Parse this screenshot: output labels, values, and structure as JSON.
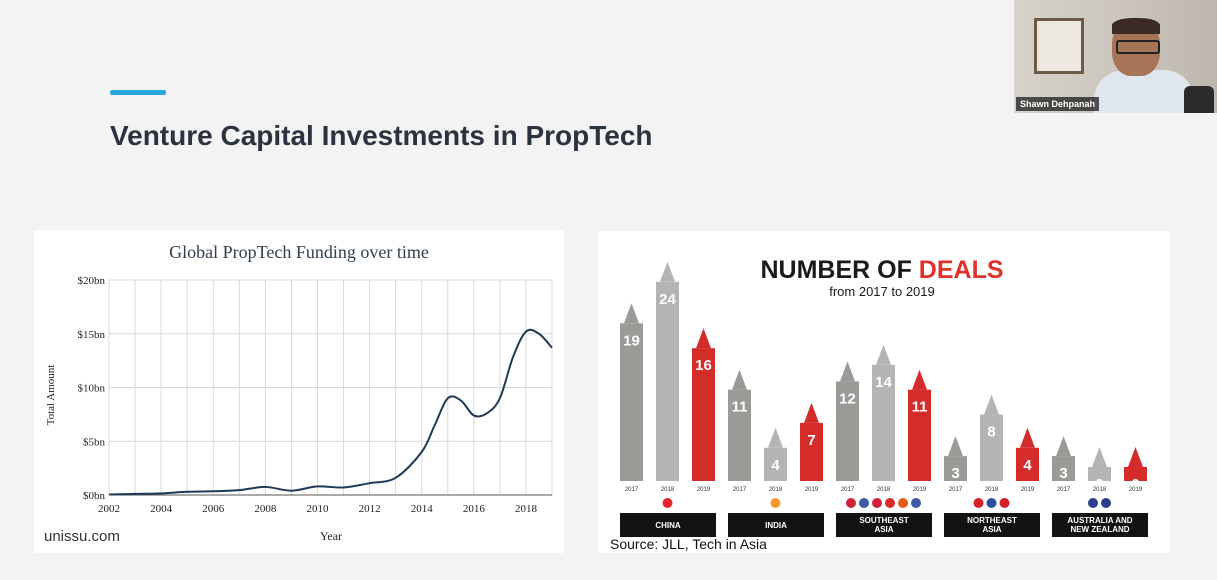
{
  "slide": {
    "title": "Venture Capital Investments in PropTech"
  },
  "video": {
    "participant_name": "Shawn Dehpanah"
  },
  "left_panel": {
    "watermark": "unissu.com"
  },
  "right_panel": {
    "source": "Source: JLL, Tech in Asia"
  },
  "chart_data": [
    {
      "type": "line",
      "title": "Global PropTech Funding over time",
      "xlabel": "Year",
      "ylabel": "Total Amount",
      "xlim": [
        2002,
        2019
      ],
      "ylim": [
        0,
        20
      ],
      "xticks": [
        2002,
        2004,
        2006,
        2008,
        2010,
        2012,
        2014,
        2016,
        2018
      ],
      "yticks": [
        0,
        5,
        10,
        15,
        20
      ],
      "ytick_labels": [
        "$0bn",
        "$5bn",
        "$10bn",
        "$15bn",
        "$20bn"
      ],
      "grid": true,
      "color": "#1f3a56",
      "x": [
        2002,
        2003,
        2004,
        2005,
        2006,
        2007,
        2008,
        2009,
        2010,
        2011,
        2012,
        2013,
        2014,
        2014.5,
        2015,
        2015.5,
        2016,
        2016.5,
        2017,
        2017.5,
        2018,
        2018.5,
        2019
      ],
      "y": [
        0.05,
        0.1,
        0.15,
        0.3,
        0.35,
        0.45,
        0.75,
        0.4,
        0.8,
        0.7,
        1.1,
        1.6,
        4.0,
        6.5,
        9.0,
        8.8,
        7.4,
        7.6,
        9.0,
        12.8,
        15.2,
        15.0,
        13.7
      ]
    },
    {
      "type": "bar",
      "title": "NUMBER OF DEALS",
      "title_highlight": "DEALS",
      "subtitle": "from 2017 to 2019",
      "series_years": [
        "2017",
        "2018",
        "2019"
      ],
      "colors": [
        "#9a9a97",
        "#b4b4b2",
        "#d42b2b"
      ],
      "groups": [
        {
          "label": "CHINA",
          "values": [
            19,
            24,
            16
          ],
          "flags": [
            "#e4262a"
          ]
        },
        {
          "label": "INDIA",
          "values": [
            11,
            4,
            7
          ],
          "flags": [
            "#f39a2e"
          ]
        },
        {
          "label": "SOUTHEAST\nASIA",
          "values": [
            12,
            14,
            11
          ],
          "flags": [
            "#d0213a",
            "#3c5aa6",
            "#d0213a",
            "#d92a2a",
            "#e85a1e",
            "#3c5aa6"
          ]
        },
        {
          "label": "NORTHEAST\nASIA",
          "values": [
            3,
            8,
            4
          ],
          "flags": [
            "#d8202a",
            "#2b4ea2",
            "#d8202a"
          ]
        },
        {
          "label": "AUSTRALIA AND\nNEW ZEALAND",
          "values": [
            3,
            0,
            0
          ],
          "flags": [
            "#2b3f8e",
            "#2b3f8e"
          ]
        }
      ]
    }
  ]
}
